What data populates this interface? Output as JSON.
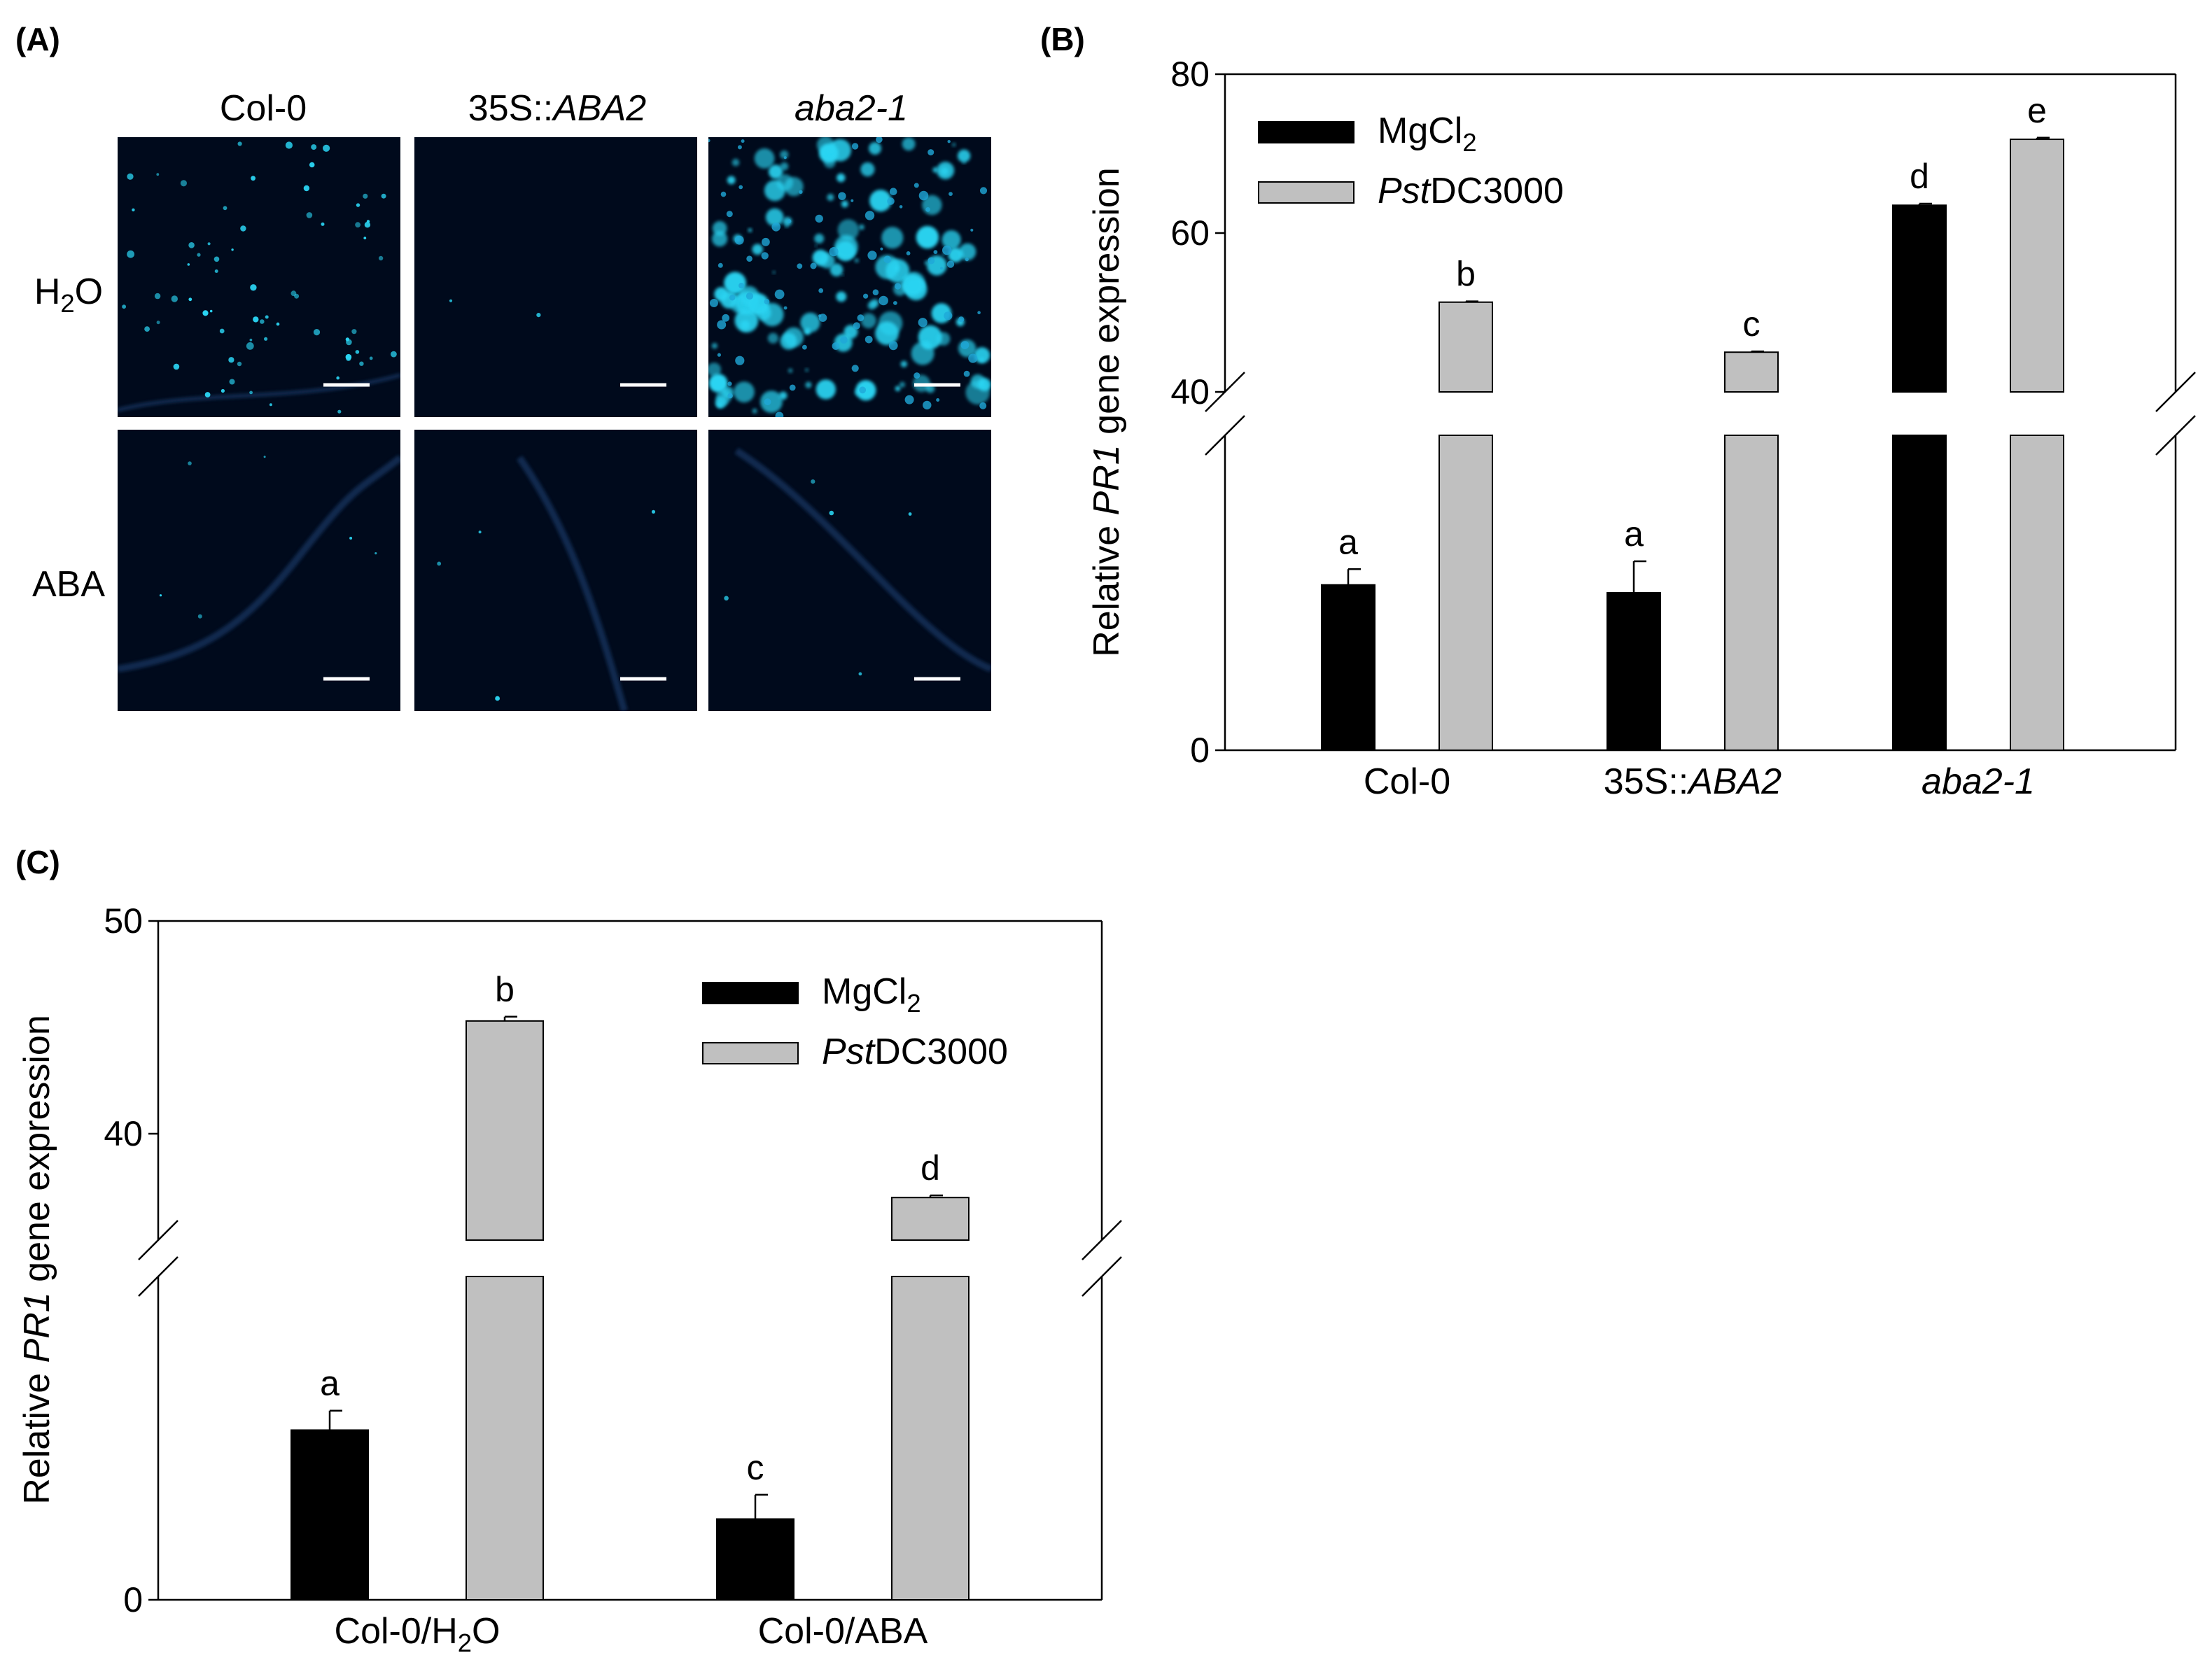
{
  "panel_a": {
    "label": "(A)",
    "columns": [
      {
        "text": "Col-0",
        "italic": ""
      },
      {
        "text": "35S::",
        "italic": "ABA2"
      },
      {
        "text": "",
        "italic": "aba2-1"
      }
    ],
    "rows": [
      {
        "text": "H",
        "sub": "2",
        "after": "O"
      },
      {
        "text": "ABA",
        "sub": "",
        "after": ""
      }
    ],
    "image_color": "#000a1c",
    "fluor_color": "#2ad4f2"
  },
  "chart_data": [
    {
      "type": "bar",
      "panel_label": "(B)",
      "categories": [
        {
          "text": "Col-0",
          "italic": ""
        },
        {
          "text": "35S::",
          "italic": "ABA2"
        },
        {
          "text": "",
          "italic": "aba2-1"
        }
      ],
      "series": [
        {
          "name_plain": "MgCl",
          "name_sub": "2",
          "name_italic": "",
          "name_after": "",
          "color": "#000000",
          "values": [
            10.5,
            10,
            63.5
          ],
          "errors": [
            1.0,
            2.0,
            0.2
          ],
          "letters": [
            "a",
            "a",
            "d"
          ]
        },
        {
          "name_plain": "",
          "name_sub": "",
          "name_italic": "Pst",
          "name_after": "DC3000",
          "color": "#c0c0c0",
          "values": [
            51.3,
            45,
            71.8
          ],
          "errors": [
            0.1,
            0.1,
            0.2
          ],
          "letters": [
            "b",
            "c",
            "e"
          ]
        }
      ],
      "ylabel_pre": "Relative ",
      "ylabel_italic": "PR1",
      "ylabel_post": " gene expression",
      "broken_axis": true,
      "lower_segment": [
        0,
        20
      ],
      "upper_segment": [
        40,
        80
      ],
      "yticks_lower": [
        0
      ],
      "yticks_upper": [
        40,
        60,
        80
      ],
      "legend_position": "top-left"
    },
    {
      "type": "bar",
      "panel_label": "(C)",
      "categories": [
        {
          "text": "Col-0/H",
          "sub": "2",
          "after": "O"
        },
        {
          "text": "Col-0/ABA",
          "sub": "",
          "after": ""
        }
      ],
      "series": [
        {
          "name_plain": "MgCl",
          "name_sub": "2",
          "name_italic": "",
          "name_after": "",
          "color": "#000000",
          "values": [
            10.5,
            5
          ],
          "errors": [
            1.2,
            1.5
          ],
          "letters": [
            "a",
            "c"
          ]
        },
        {
          "name_plain": "",
          "name_sub": "",
          "name_italic": "Pst",
          "name_after": "DC3000",
          "color": "#c0c0c0",
          "values": [
            45.3,
            37
          ],
          "errors": [
            0.2,
            0.1
          ],
          "letters": [
            "b",
            "d"
          ]
        }
      ],
      "ylabel_pre": "Relative ",
      "ylabel_italic": "PR1",
      "ylabel_post": " gene expression",
      "broken_axis": true,
      "lower_segment": [
        0,
        20
      ],
      "upper_segment": [
        35,
        50
      ],
      "yticks_lower": [
        0
      ],
      "yticks_upper": [
        40,
        50
      ],
      "legend_position": "top-right"
    }
  ]
}
